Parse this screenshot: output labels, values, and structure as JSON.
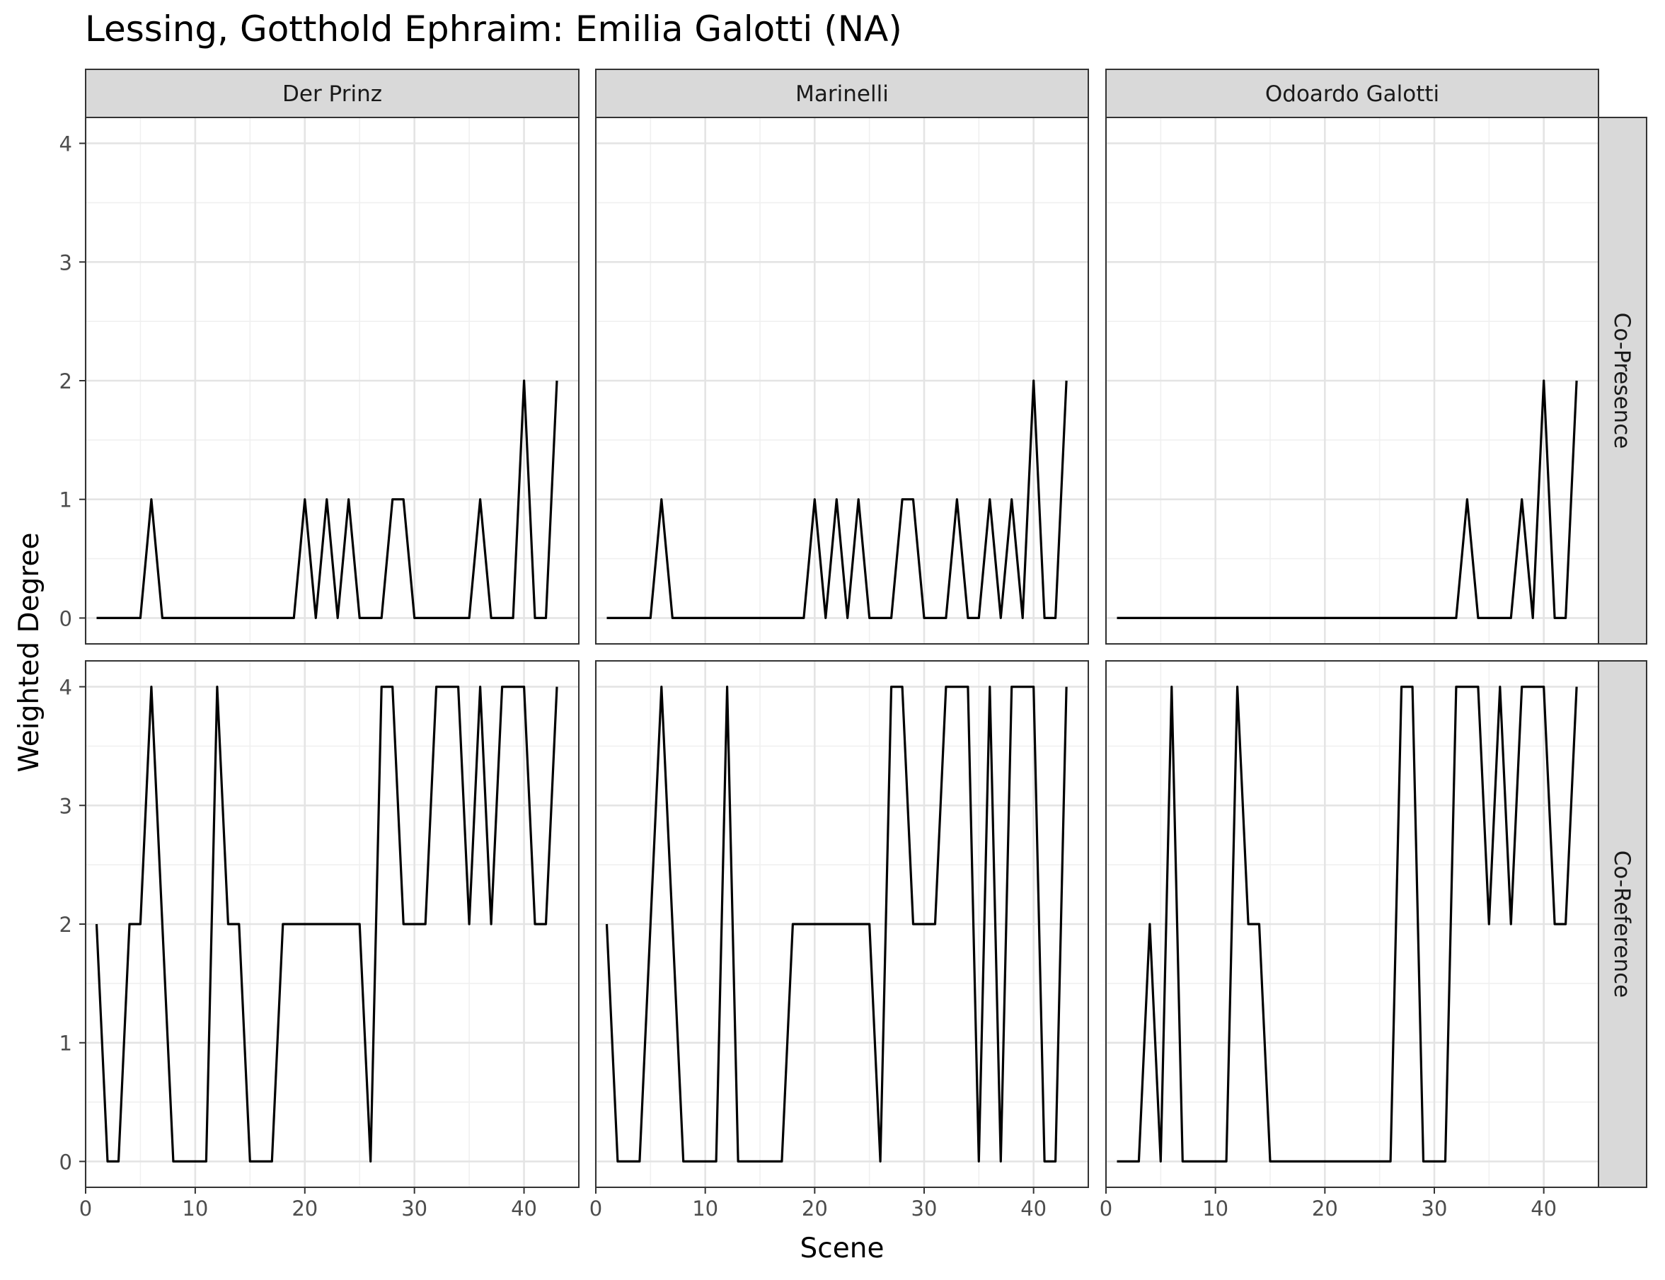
{
  "chart_data": {
    "type": "line",
    "title": "Lessing, Gotthold Ephraim: Emilia Galotti (NA)",
    "xlabel": "Scene",
    "ylabel": "Weighted Degree",
    "xlim": [
      0,
      45
    ],
    "ylim": [
      0,
      4
    ],
    "x_ticks": [
      0,
      10,
      20,
      30,
      40
    ],
    "y_ticks": [
      0,
      1,
      2,
      3,
      4
    ],
    "grid": true,
    "columns": [
      "Der Prinz",
      "Marinelli",
      "Odoardo Galotti"
    ],
    "rows": [
      "Co-Presence",
      "Co-Reference"
    ],
    "x": [
      1,
      2,
      3,
      4,
      5,
      6,
      7,
      8,
      9,
      10,
      11,
      12,
      13,
      14,
      15,
      16,
      17,
      18,
      19,
      20,
      21,
      22,
      23,
      24,
      25,
      26,
      27,
      28,
      29,
      30,
      31,
      32,
      33,
      34,
      35,
      36,
      37,
      38,
      39,
      40,
      41,
      42,
      43
    ],
    "panels": [
      {
        "row": "Co-Presence",
        "column": "Der Prinz",
        "values": [
          0,
          0,
          0,
          0,
          0,
          1,
          0,
          0,
          0,
          0,
          0,
          0,
          0,
          0,
          0,
          0,
          0,
          0,
          0,
          1,
          0,
          1,
          0,
          1,
          0,
          0,
          0,
          1,
          1,
          0,
          0,
          0,
          0,
          0,
          0,
          1,
          0,
          0,
          0,
          2,
          0,
          0,
          2
        ]
      },
      {
        "row": "Co-Presence",
        "column": "Marinelli",
        "values": [
          0,
          0,
          0,
          0,
          0,
          1,
          0,
          0,
          0,
          0,
          0,
          0,
          0,
          0,
          0,
          0,
          0,
          0,
          0,
          1,
          0,
          1,
          0,
          1,
          0,
          0,
          0,
          1,
          1,
          0,
          0,
          0,
          1,
          0,
          0,
          1,
          0,
          1,
          0,
          2,
          0,
          0,
          2
        ]
      },
      {
        "row": "Co-Presence",
        "column": "Odoardo Galotti",
        "values": [
          0,
          0,
          0,
          0,
          0,
          0,
          0,
          0,
          0,
          0,
          0,
          0,
          0,
          0,
          0,
          0,
          0,
          0,
          0,
          0,
          0,
          0,
          0,
          0,
          0,
          0,
          0,
          0,
          0,
          0,
          0,
          0,
          1,
          0,
          0,
          0,
          0,
          1,
          0,
          2,
          0,
          0,
          2
        ]
      },
      {
        "row": "Co-Reference",
        "column": "Der Prinz",
        "values": [
          2,
          0,
          0,
          2,
          2,
          4,
          2,
          0,
          0,
          0,
          0,
          4,
          2,
          2,
          0,
          0,
          0,
          2,
          2,
          2,
          2,
          2,
          2,
          2,
          2,
          0,
          4,
          4,
          2,
          2,
          2,
          4,
          4,
          4,
          2,
          4,
          2,
          4,
          4,
          4,
          2,
          2,
          4
        ]
      },
      {
        "row": "Co-Reference",
        "column": "Marinelli",
        "values": [
          2,
          0,
          0,
          0,
          2,
          4,
          2,
          0,
          0,
          0,
          0,
          4,
          0,
          0,
          0,
          0,
          0,
          2,
          2,
          2,
          2,
          2,
          2,
          2,
          2,
          0,
          4,
          4,
          2,
          2,
          2,
          4,
          4,
          4,
          0,
          4,
          0,
          4,
          4,
          4,
          0,
          0,
          4
        ]
      },
      {
        "row": "Co-Reference",
        "column": "Odoardo Galotti",
        "values": [
          0,
          0,
          0,
          2,
          0,
          4,
          0,
          0,
          0,
          0,
          0,
          4,
          2,
          2,
          0,
          0,
          0,
          0,
          0,
          0,
          0,
          0,
          0,
          0,
          0,
          0,
          4,
          4,
          0,
          0,
          0,
          4,
          4,
          4,
          2,
          4,
          2,
          4,
          4,
          4,
          2,
          2,
          4
        ]
      }
    ]
  }
}
